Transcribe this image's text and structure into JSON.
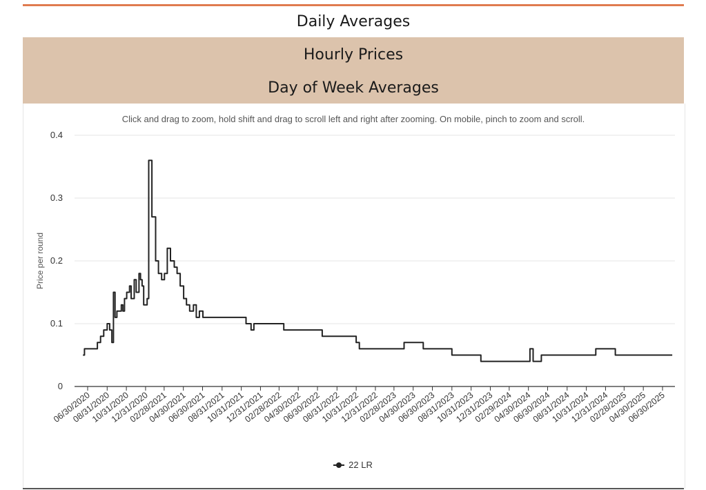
{
  "tabs": {
    "daily": "Daily Averages",
    "hourly": "Hourly Prices",
    "day_of_week": "Day of Week Averages"
  },
  "hint": "Click and drag to zoom, hold shift and drag to scroll left and right after zooming. On mobile, pinch to zoom and scroll.",
  "colors": {
    "accent": "#e07b4f",
    "tab_band": "#dcc3ac",
    "series": "#222222",
    "grid": "#e6e6e6"
  },
  "chart_data": {
    "type": "line",
    "title": "",
    "xlabel": "",
    "ylabel": "Price per round",
    "ylim": [
      0,
      0.4
    ],
    "y_ticks": [
      "0",
      "0.1",
      "0.2",
      "0.3",
      "0.4"
    ],
    "x_ticks": [
      "06/30/2020",
      "08/31/2020",
      "10/31/2020",
      "12/31/2020",
      "02/28/2021",
      "04/30/2021",
      "06/30/2021",
      "08/31/2021",
      "10/31/2021",
      "12/31/2021",
      "02/28/2022",
      "04/30/2022",
      "06/30/2022",
      "08/31/2022",
      "10/31/2022",
      "12/31/2022",
      "02/28/2023",
      "04/30/2023",
      "06/30/2023",
      "08/31/2023",
      "10/31/2023",
      "12/31/2023",
      "02/29/2024",
      "04/30/2024",
      "06/30/2024",
      "08/31/2024",
      "10/31/2024",
      "12/31/2024",
      "02/28/2025",
      "04/30/2025",
      "06/30/2025"
    ],
    "grid": true,
    "legend_position": "bottom",
    "series": [
      {
        "name": "22 LR",
        "x": [
          "06/15/2020",
          "06/20/2020",
          "07/20/2020",
          "07/31/2020",
          "08/10/2020",
          "08/20/2020",
          "08/31/2020",
          "09/08/2020",
          "09/15/2020",
          "09/20/2020",
          "09/25/2020",
          "10/01/2020",
          "10/10/2020",
          "10/15/2020",
          "10/20/2020",
          "10/25/2020",
          "11/01/2020",
          "11/10/2020",
          "11/15/2020",
          "11/25/2020",
          "12/01/2020",
          "12/10/2020",
          "12/15/2020",
          "12/20/2020",
          "12/25/2020",
          "01/01/2021",
          "01/05/2021",
          "01/10/2021",
          "01/20/2021",
          "02/01/2021",
          "02/10/2021",
          "02/20/2021",
          "03/01/2021",
          "03/10/2021",
          "03/20/2021",
          "04/01/2021",
          "04/10/2021",
          "04/20/2021",
          "05/01/2021",
          "05/10/2021",
          "05/20/2021",
          "06/01/2021",
          "06/10/2021",
          "06/20/2021",
          "07/01/2021",
          "07/10/2021",
          "08/01/2021",
          "08/31/2021",
          "09/10/2021",
          "10/01/2021",
          "10/31/2021",
          "11/15/2021",
          "12/01/2021",
          "12/10/2021",
          "12/31/2021",
          "01/15/2022",
          "02/28/2022",
          "03/15/2022",
          "04/30/2022",
          "05/15/2022",
          "06/30/2022",
          "07/15/2022",
          "08/31/2022",
          "09/15/2022",
          "10/15/2022",
          "10/31/2022",
          "11/10/2022",
          "11/20/2022",
          "12/10/2022",
          "12/31/2022",
          "02/28/2023",
          "04/01/2023",
          "04/20/2023",
          "05/10/2023",
          "06/01/2023",
          "06/30/2023",
          "07/20/2023",
          "08/31/2023",
          "09/30/2023",
          "10/31/2023",
          "11/10/2023",
          "12/01/2023",
          "12/31/2023",
          "02/29/2024",
          "03/31/2024",
          "04/20/2024",
          "05/05/2024",
          "05/15/2024",
          "06/10/2024",
          "06/30/2024",
          "07/15/2024",
          "08/31/2024",
          "09/30/2024",
          "10/31/2024",
          "11/30/2024",
          "12/31/2024",
          "01/31/2025",
          "03/31/2025",
          "04/30/2025",
          "06/30/2025",
          "07/31/2025"
        ],
        "y": [
          0.05,
          0.06,
          0.06,
          0.07,
          0.08,
          0.09,
          0.1,
          0.09,
          0.07,
          0.15,
          0.11,
          0.12,
          0.12,
          0.13,
          0.12,
          0.14,
          0.15,
          0.16,
          0.14,
          0.17,
          0.15,
          0.18,
          0.17,
          0.16,
          0.13,
          0.13,
          0.14,
          0.36,
          0.27,
          0.2,
          0.18,
          0.17,
          0.18,
          0.22,
          0.2,
          0.19,
          0.18,
          0.16,
          0.14,
          0.13,
          0.12,
          0.13,
          0.11,
          0.12,
          0.11,
          0.11,
          0.11,
          0.11,
          0.11,
          0.11,
          0.11,
          0.1,
          0.09,
          0.1,
          0.1,
          0.1,
          0.1,
          0.09,
          0.09,
          0.09,
          0.09,
          0.08,
          0.08,
          0.08,
          0.08,
          0.07,
          0.06,
          0.06,
          0.06,
          0.06,
          0.06,
          0.07,
          0.07,
          0.07,
          0.06,
          0.06,
          0.06,
          0.05,
          0.05,
          0.05,
          0.05,
          0.04,
          0.04,
          0.04,
          0.04,
          0.04,
          0.06,
          0.04,
          0.05,
          0.05,
          0.05,
          0.05,
          0.05,
          0.05,
          0.06,
          0.06,
          0.05,
          0.05,
          0.05,
          0.05,
          0.05
        ]
      }
    ]
  }
}
